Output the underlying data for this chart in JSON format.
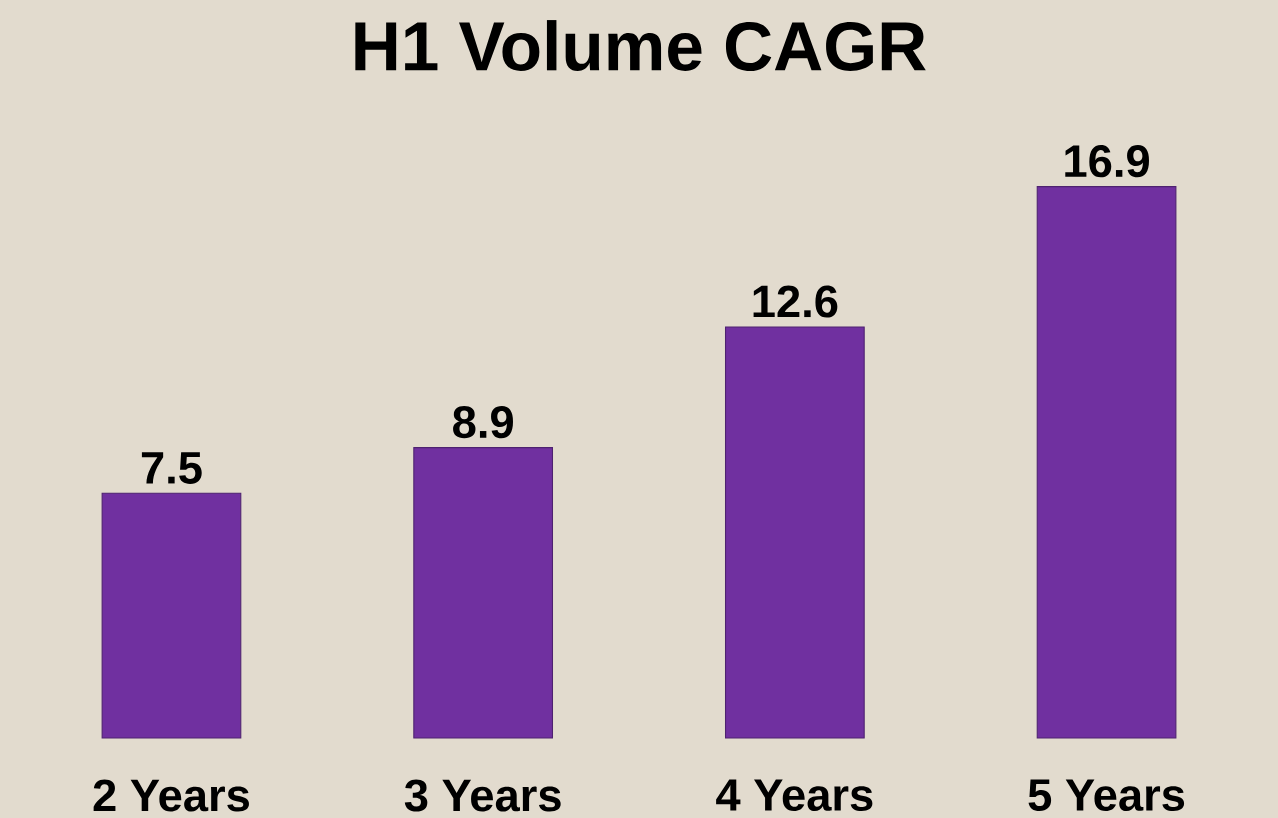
{
  "chart_data": {
    "type": "bar",
    "title": "H1 Volume CAGR",
    "categories": [
      "2 Years",
      "3 Years",
      "4 Years",
      "5 Years"
    ],
    "values": [
      7.5,
      8.9,
      12.6,
      16.9
    ],
    "color": "#7030a0",
    "data_labels": true
  }
}
